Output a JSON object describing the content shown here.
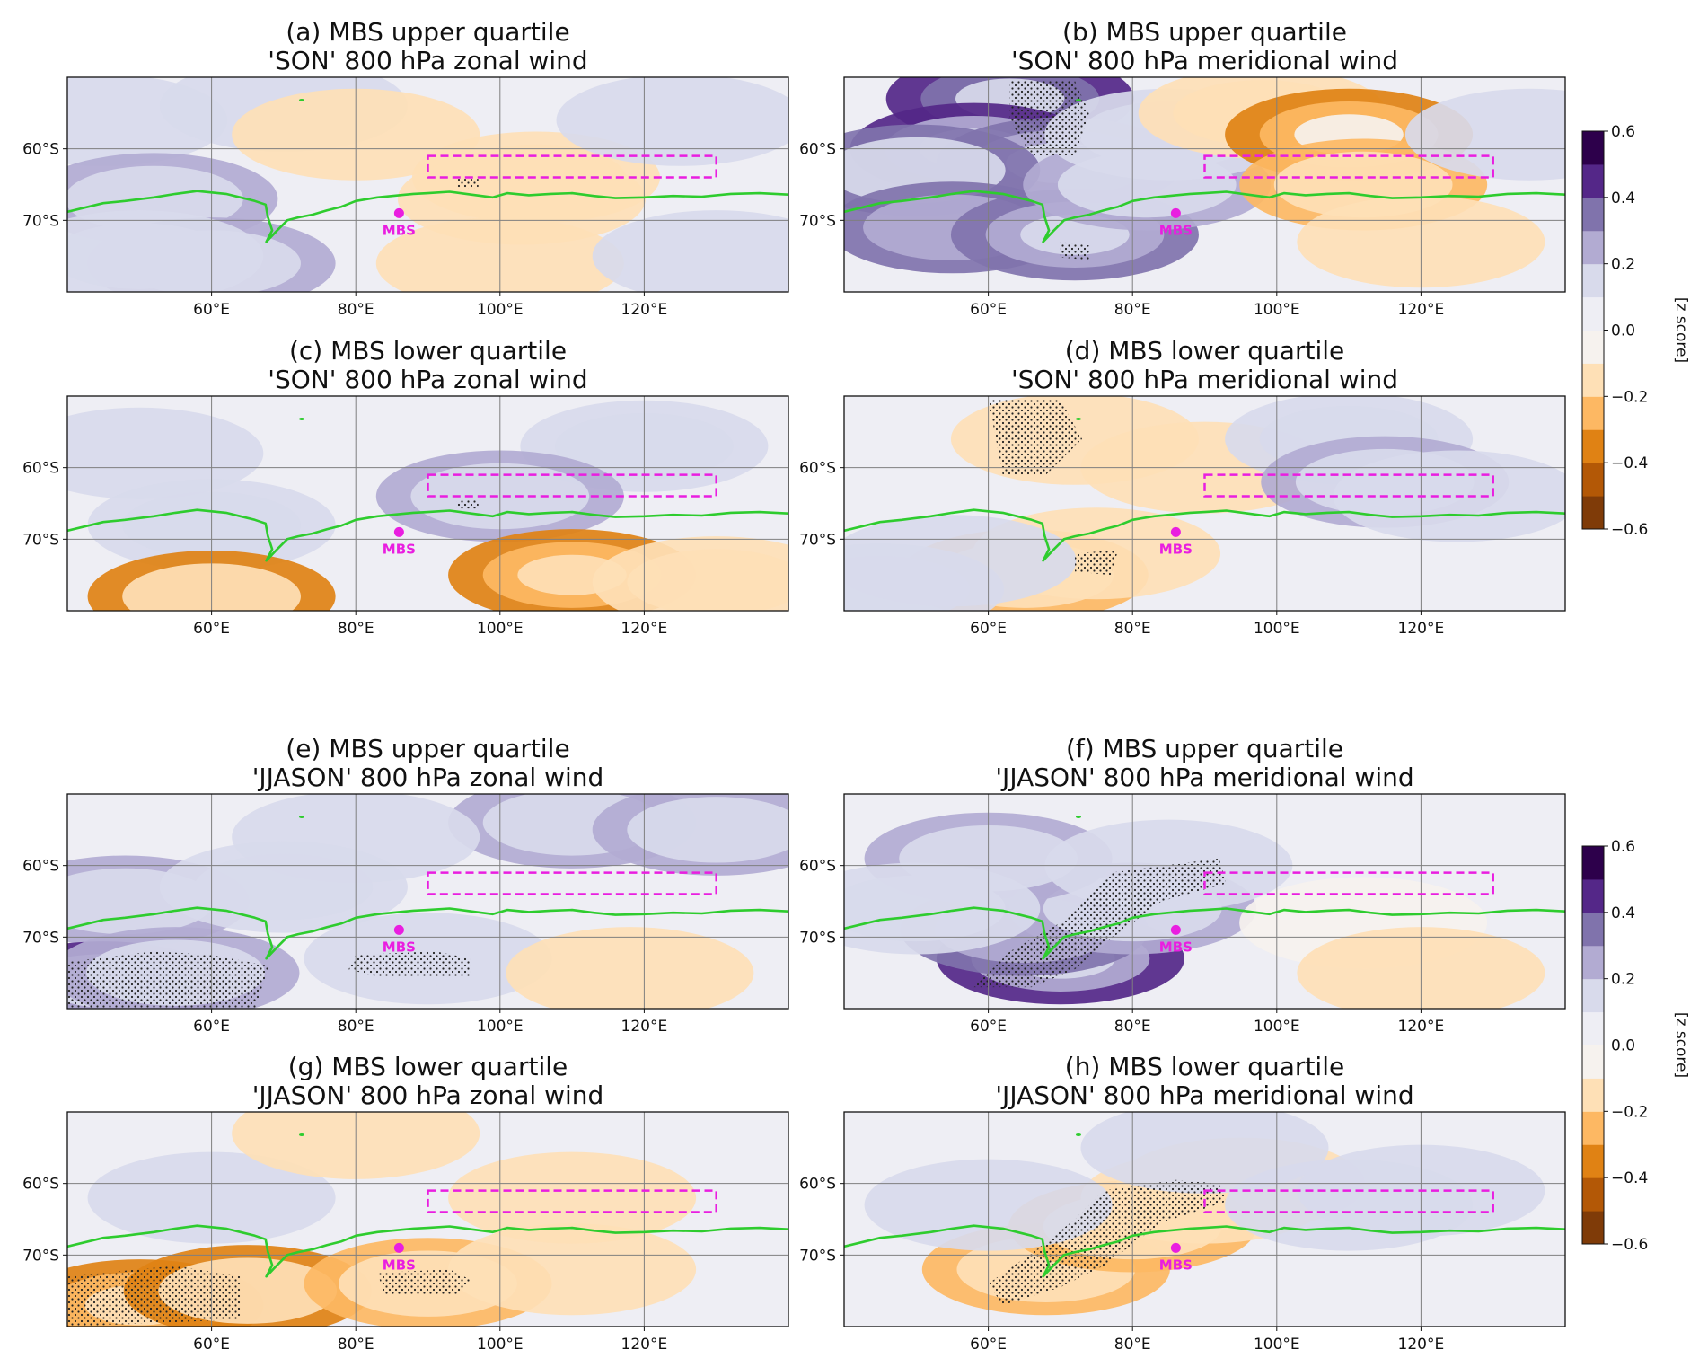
{
  "chart_data": {
    "type": "contour-map-panels",
    "colorbar": {
      "label": "[z score]",
      "range": [
        -0.6,
        0.6
      ],
      "levels": [
        -0.6,
        -0.5,
        -0.4,
        -0.3,
        -0.2,
        -0.1,
        0.0,
        0.1,
        0.2,
        0.3,
        0.4,
        0.5,
        0.6
      ],
      "tick_values": [
        0.6,
        0.4,
        0.2,
        0.0,
        -0.2,
        -0.4,
        -0.6
      ],
      "tick_labels": [
        "0.6",
        "0.4",
        "0.2",
        "0.0",
        "−0.2",
        "−0.4",
        "−0.6"
      ],
      "colors": [
        "#7f3b08",
        "#b35806",
        "#e08214",
        "#fdb863",
        "#fee0b6",
        "#f6f2ee",
        "#eeeef4",
        "#d8daeb",
        "#b2abd2",
        "#8073ac",
        "#542788",
        "#2d004b"
      ]
    },
    "lon_range": [
      40,
      140
    ],
    "lat_range": [
      -80,
      -50
    ],
    "lon_ticks": [
      60,
      80,
      100,
      120
    ],
    "lon_tick_labels": [
      "60°E",
      "80°E",
      "100°E",
      "120°E"
    ],
    "lat_ticks": [
      -60,
      -70
    ],
    "lat_tick_labels": [
      "60°S",
      "70°S"
    ],
    "station": {
      "label": "MBS",
      "lon": 86,
      "lat": -69,
      "color": "#e91ee0"
    },
    "box": {
      "lon": [
        90,
        130
      ],
      "lat": [
        -64,
        -61
      ],
      "color": "#e91ee0"
    },
    "coastline_color": "#2ecc2e",
    "panels": [
      {
        "id": "a",
        "title1": "(a) MBS upper quartile",
        "title2": "'SON' 800 hPa zonal wind",
        "anomalies": [
          {
            "lon": 45,
            "lat": -56,
            "z": 0.12
          },
          {
            "lon": 70,
            "lat": -54,
            "z": 0.1
          },
          {
            "lon": 52,
            "lat": -67,
            "z": 0.27
          },
          {
            "lon": 60,
            "lat": -76,
            "z": 0.25
          },
          {
            "lon": 50,
            "lat": -75,
            "z": 0.22
          },
          {
            "lon": 80,
            "lat": -58,
            "z": -0.12
          },
          {
            "lon": 105,
            "lat": -64,
            "z": -0.2
          },
          {
            "lon": 103,
            "lat": -67,
            "z": -0.18
          },
          {
            "lon": 100,
            "lat": -76,
            "z": -0.12
          },
          {
            "lon": 125,
            "lat": -56,
            "z": 0.15
          },
          {
            "lon": 130,
            "lat": -75,
            "z": 0.12
          }
        ]
      },
      {
        "id": "b",
        "title1": "(b) MBS upper quartile",
        "title2": "'SON' 800 hPa meridional wind",
        "anomalies": [
          {
            "lon": 63,
            "lat": -53,
            "z": 0.55
          },
          {
            "lon": 58,
            "lat": -60,
            "z": 0.45
          },
          {
            "lon": 70,
            "lat": -62,
            "z": 0.42
          },
          {
            "lon": 50,
            "lat": -63,
            "z": 0.35
          },
          {
            "lon": 55,
            "lat": -71,
            "z": 0.38
          },
          {
            "lon": 72,
            "lat": -72,
            "z": 0.42
          },
          {
            "lon": 82,
            "lat": -65,
            "z": 0.28
          },
          {
            "lon": 85,
            "lat": -58,
            "z": 0.2
          },
          {
            "lon": 98,
            "lat": -55,
            "z": -0.2
          },
          {
            "lon": 110,
            "lat": -58,
            "z": -0.4
          },
          {
            "lon": 112,
            "lat": -65,
            "z": -0.25
          },
          {
            "lon": 120,
            "lat": -73,
            "z": -0.12
          },
          {
            "lon": 135,
            "lat": -58,
            "z": 0.12
          }
        ]
      },
      {
        "id": "c",
        "title1": "(c) MBS lower quartile",
        "title2": "'SON' 800 hPa zonal wind",
        "anomalies": [
          {
            "lon": 50,
            "lat": -58,
            "z": 0.12
          },
          {
            "lon": 120,
            "lat": -57,
            "z": 0.2
          },
          {
            "lon": 100,
            "lat": -64,
            "z": 0.25
          },
          {
            "lon": 60,
            "lat": -68,
            "z": 0.22
          },
          {
            "lon": 110,
            "lat": -75,
            "z": -0.42
          },
          {
            "lon": 60,
            "lat": -78,
            "z": -0.35
          },
          {
            "lon": 130,
            "lat": -76,
            "z": -0.22
          }
        ]
      },
      {
        "id": "d",
        "title1": "(d) MBS lower quartile",
        "title2": "'SON' 800 hPa meridional wind",
        "anomalies": [
          {
            "lon": 72,
            "lat": -56,
            "z": -0.18
          },
          {
            "lon": 90,
            "lat": -60,
            "z": -0.12
          },
          {
            "lon": 110,
            "lat": -56,
            "z": 0.2
          },
          {
            "lon": 115,
            "lat": -62,
            "z": 0.25
          },
          {
            "lon": 125,
            "lat": -64,
            "z": 0.18
          },
          {
            "lon": 65,
            "lat": -75,
            "z": -0.25
          },
          {
            "lon": 75,
            "lat": -72,
            "z": -0.18
          },
          {
            "lon": 45,
            "lat": -77,
            "z": 0.2
          },
          {
            "lon": 55,
            "lat": -73,
            "z": 0.12
          }
        ]
      },
      {
        "id": "e",
        "title1": "(e) MBS upper quartile",
        "title2": "'JJASON' 800 hPa zonal wind",
        "anomalies": [
          {
            "lon": 110,
            "lat": -54,
            "z": 0.28
          },
          {
            "lon": 130,
            "lat": -55,
            "z": 0.25
          },
          {
            "lon": 80,
            "lat": -56,
            "z": 0.18
          },
          {
            "lon": 48,
            "lat": -65,
            "z": 0.28
          },
          {
            "lon": 70,
            "lat": -63,
            "z": 0.22
          },
          {
            "lon": 45,
            "lat": -77,
            "z": 0.45
          },
          {
            "lon": 55,
            "lat": -75,
            "z": 0.3
          },
          {
            "lon": 90,
            "lat": -73,
            "z": 0.15
          },
          {
            "lon": 118,
            "lat": -75,
            "z": -0.15
          }
        ]
      },
      {
        "id": "f",
        "title1": "(f) MBS upper quartile",
        "title2": "'JJASON' 800 hPa meridional wind",
        "anomalies": [
          {
            "lon": 70,
            "lat": -73,
            "z": 0.45
          },
          {
            "lon": 65,
            "lat": -69,
            "z": 0.38
          },
          {
            "lon": 80,
            "lat": -66,
            "z": 0.32
          },
          {
            "lon": 60,
            "lat": -59,
            "z": 0.25
          },
          {
            "lon": 50,
            "lat": -66,
            "z": 0.22
          },
          {
            "lon": 85,
            "lat": -60,
            "z": 0.18
          },
          {
            "lon": 112,
            "lat": -68,
            "z": -0.1
          },
          {
            "lon": 120,
            "lat": -75,
            "z": -0.15
          }
        ]
      },
      {
        "id": "g",
        "title1": "(g) MBS lower quartile",
        "title2": "'JJASON' 800 hPa zonal wind",
        "anomalies": [
          {
            "lon": 50,
            "lat": -77,
            "z": -0.42
          },
          {
            "lon": 65,
            "lat": -75,
            "z": -0.35
          },
          {
            "lon": 90,
            "lat": -74,
            "z": -0.3
          },
          {
            "lon": 110,
            "lat": -72,
            "z": -0.18
          },
          {
            "lon": 60,
            "lat": -62,
            "z": 0.1
          },
          {
            "lon": 80,
            "lat": -53,
            "z": -0.12
          },
          {
            "lon": 110,
            "lat": -62,
            "z": -0.15
          }
        ]
      },
      {
        "id": "h",
        "title1": "(h) MBS lower quartile",
        "title2": "'JJASON' 800 hPa meridional wind",
        "anomalies": [
          {
            "lon": 68,
            "lat": -72,
            "z": -0.3
          },
          {
            "lon": 80,
            "lat": -66,
            "z": -0.25
          },
          {
            "lon": 90,
            "lat": -62,
            "z": -0.2
          },
          {
            "lon": 95,
            "lat": -60,
            "z": -0.15
          },
          {
            "lon": 110,
            "lat": -63,
            "z": 0.12
          },
          {
            "lon": 120,
            "lat": -61,
            "z": 0.12
          },
          {
            "lon": 60,
            "lat": -63,
            "z": 0.1
          },
          {
            "lon": 90,
            "lat": -55,
            "z": 0.12
          }
        ]
      }
    ]
  }
}
